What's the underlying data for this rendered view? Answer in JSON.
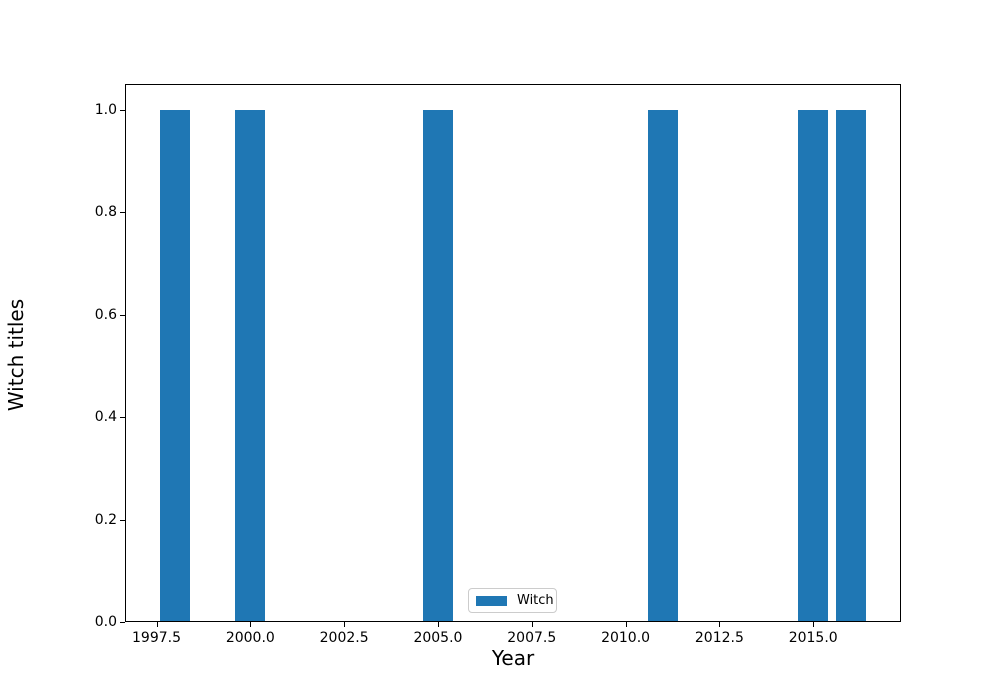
{
  "figure": {
    "background": "#ffffff",
    "text_color": "#000000",
    "spine_color": "#000000"
  },
  "chart_data": {
    "type": "bar",
    "title": "",
    "xlabel": "Year",
    "ylabel": "Witch titles",
    "series": [
      {
        "name": "Witch",
        "color": "#1f77b4",
        "x": [
          1998,
          2000,
          2005,
          2011,
          2015,
          2016
        ],
        "values": [
          1.0,
          1.0,
          1.0,
          1.0,
          1.0,
          1.0
        ]
      }
    ],
    "bar_width": 0.8,
    "xlim": [
      1996.66,
      2017.34
    ],
    "ylim": [
      0,
      1.05
    ],
    "xticks": [
      1997.5,
      2000.0,
      2002.5,
      2005.0,
      2007.5,
      2010.0,
      2012.5,
      2015.0
    ],
    "xtick_labels": [
      "1997.5",
      "2000.0",
      "2002.5",
      "2005.0",
      "2007.5",
      "2010.0",
      "2012.5",
      "2015.0"
    ],
    "yticks": [
      0.0,
      0.2,
      0.4,
      0.6,
      0.8,
      1.0
    ],
    "ytick_labels": [
      "0.0",
      "0.2",
      "0.4",
      "0.6",
      "0.8",
      "1.0"
    ],
    "grid": false,
    "legend": {
      "label": "Witch",
      "position": "lower center",
      "swatch_color": "#1f77b4",
      "border_color": "#cccccc"
    }
  }
}
